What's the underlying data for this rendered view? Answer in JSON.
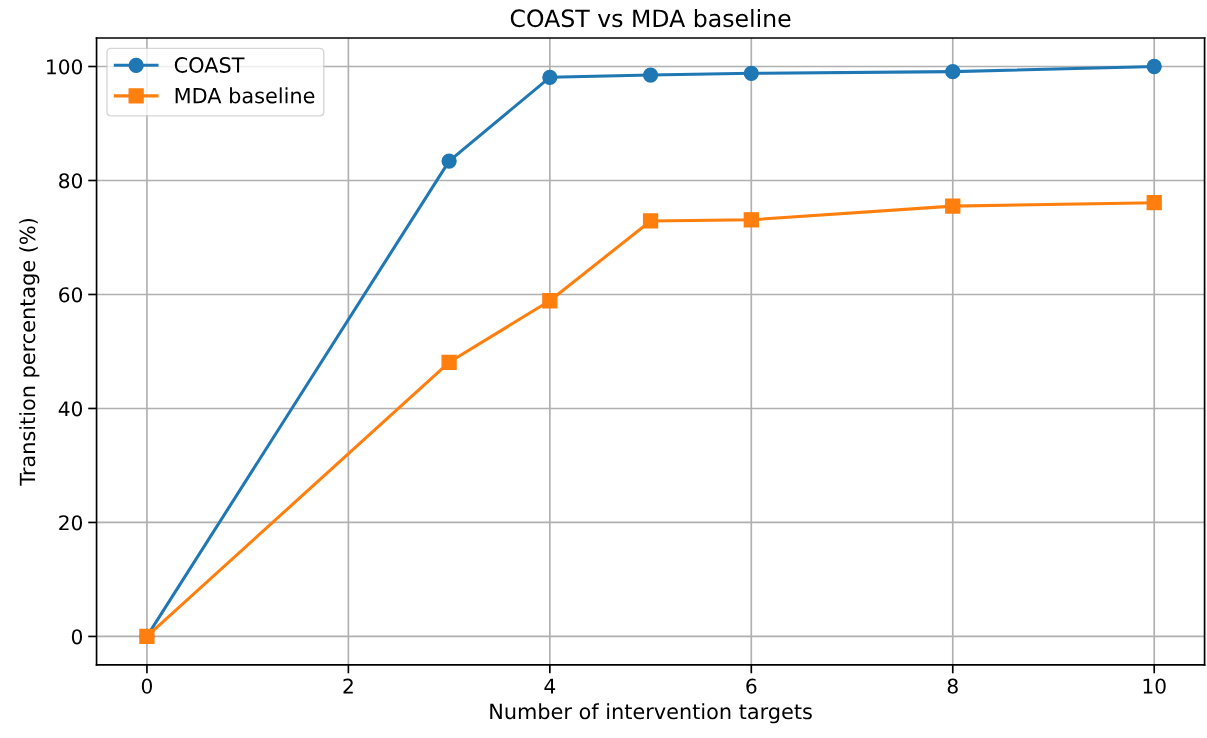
{
  "chart_data": {
    "type": "line",
    "title": "COAST vs MDA baseline",
    "xlabel": "Number of intervention targets",
    "ylabel": "Transition percentage (%)",
    "x": [
      0,
      3,
      4,
      5,
      6,
      8,
      10
    ],
    "series": [
      {
        "name": "COAST",
        "color": "#1f77b4",
        "marker": "circle",
        "values": [
          0,
          83.4,
          98.1,
          98.5,
          98.8,
          99.1,
          100
        ]
      },
      {
        "name": "MDA baseline",
        "color": "#ff7f0e",
        "marker": "square",
        "values": [
          0,
          48.1,
          58.9,
          72.9,
          73.1,
          75.5,
          76.1
        ]
      }
    ],
    "xlim": [
      -0.5,
      10.5
    ],
    "xticks": [
      0,
      2,
      4,
      6,
      8,
      10
    ],
    "ylim": [
      -5,
      105
    ],
    "yticks": [
      0,
      20,
      40,
      60,
      80,
      100
    ],
    "grid": true,
    "legend": "top left",
    "line_style": "solid"
  }
}
